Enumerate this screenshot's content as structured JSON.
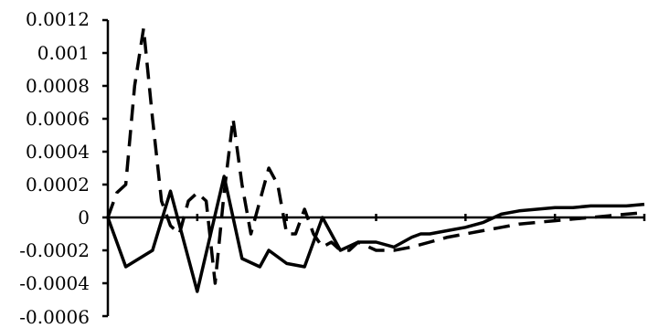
{
  "chart_data": {
    "type": "line",
    "title": "",
    "xlabel": "",
    "ylabel": "",
    "ylim": [
      -0.0006,
      0.0012
    ],
    "yticks": [
      "0.0012",
      "0.001",
      "0.0008",
      "0.0006",
      "0.0004",
      "0.0002",
      "0",
      "-0.0002",
      "-0.0004",
      "-0.0006"
    ],
    "ytick_values": [
      0.0012,
      0.001,
      0.0008,
      0.0006,
      0.0004,
      0.0002,
      0,
      -0.0002,
      -0.0004,
      -0.0006
    ],
    "grid": false,
    "legend": false,
    "xlim": [
      0,
      60
    ],
    "x_major_ticks": [
      0,
      10,
      20,
      30,
      40,
      50,
      60
    ],
    "series": [
      {
        "style": "solid",
        "color": "#000000",
        "x": [
          0,
          2,
          5,
          7,
          10,
          13,
          15,
          17,
          18,
          20,
          22,
          24,
          26,
          28,
          30,
          32,
          34,
          35,
          36,
          38,
          40,
          42,
          44,
          46,
          48,
          50,
          52,
          54,
          56,
          58,
          60
        ],
        "y": [
          0,
          -0.0003,
          -0.0002,
          0.00016,
          -0.00045,
          0.00025,
          -0.00025,
          -0.0003,
          -0.0002,
          -0.00028,
          -0.0003,
          0,
          -0.0002,
          -0.00015,
          -0.00015,
          -0.00018,
          -0.00012,
          -0.0001,
          -0.0001,
          -8e-05,
          -6e-05,
          -3e-05,
          2e-05,
          4e-05,
          5e-05,
          6e-05,
          6e-05,
          7e-05,
          7e-05,
          7e-05,
          8e-05
        ]
      },
      {
        "style": "dashed",
        "color": "#000000",
        "x": [
          0,
          1,
          2,
          3,
          4,
          5,
          6,
          7,
          8,
          9,
          10,
          11,
          12,
          13,
          14,
          15,
          16,
          17,
          18,
          19,
          20,
          21,
          22,
          23,
          24,
          25,
          26,
          27,
          28,
          30,
          32,
          34,
          36,
          38,
          40,
          42,
          44,
          46,
          48,
          50,
          52,
          54,
          56,
          58,
          60
        ],
        "y": [
          0,
          0.00015,
          0.0002,
          0.0008,
          0.00115,
          0.0006,
          0.0001,
          -5e-05,
          -0.0001,
          0.0001,
          0.00015,
          0.0001,
          -0.0004,
          0.00015,
          0.0006,
          0.0002,
          -0.0001,
          0.0001,
          0.0003,
          0.0002,
          -0.0001,
          -0.0001,
          5e-05,
          -0.0001,
          -0.00018,
          -0.00015,
          -0.0002,
          -0.0002,
          -0.00015,
          -0.0002,
          -0.0002,
          -0.00018,
          -0.00015,
          -0.00012,
          -0.0001,
          -8e-05,
          -6e-05,
          -4e-05,
          -3e-05,
          -2e-05,
          -1e-05,
          0,
          1e-05,
          2e-05,
          3e-05
        ]
      }
    ]
  }
}
